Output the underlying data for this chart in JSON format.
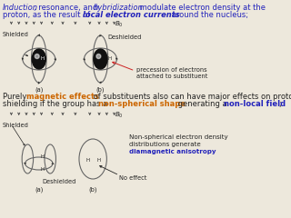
{
  "bg_color": "#ede8dc",
  "fs_main": 6.0,
  "fs_tiny": 5.0,
  "fs_label": 4.8,
  "text_blue": "#2222bb",
  "text_orange": "#cc6600",
  "text_dark": "#222222",
  "arrow_color": "#444444",
  "nucleus_color": "#111111",
  "ellipse_color": "#666666",
  "red_arrow": "#cc2222",
  "line1_a": "Induction",
  "line1_b": ", resonance, and ",
  "line1_c": "hybridization",
  "line1_d": " modulate electron density at the",
  "line2_a": "proton, as the result of ",
  "line2_b": "local electron currents",
  "line2_c": " around the nucleus;",
  "mid1_a": "Purely ",
  "mid1_b": "magnetic effects",
  "mid1_c": " of substituents also can have major effects on proton",
  "mid2_a": "shielding if the group has a ",
  "mid2_b": "non-spherical shape",
  "mid2_c": " generating a ",
  "mid2_d": "non-local field",
  "mid2_e": ";",
  "lbl_shielded": "Shielded",
  "lbl_deshielded": "Deshielded",
  "lbl_B0": "$B_0$",
  "lbl_a": "(a)",
  "lbl_b": "(b)",
  "prec_text": "precession of electrons\nattached to substituent",
  "nonsph_text": "Non-spherical electron density\ndistributions generate",
  "diamag_text": "diamagnetic anisotropy",
  "no_effect": "No effect",
  "lbl_H": "H"
}
